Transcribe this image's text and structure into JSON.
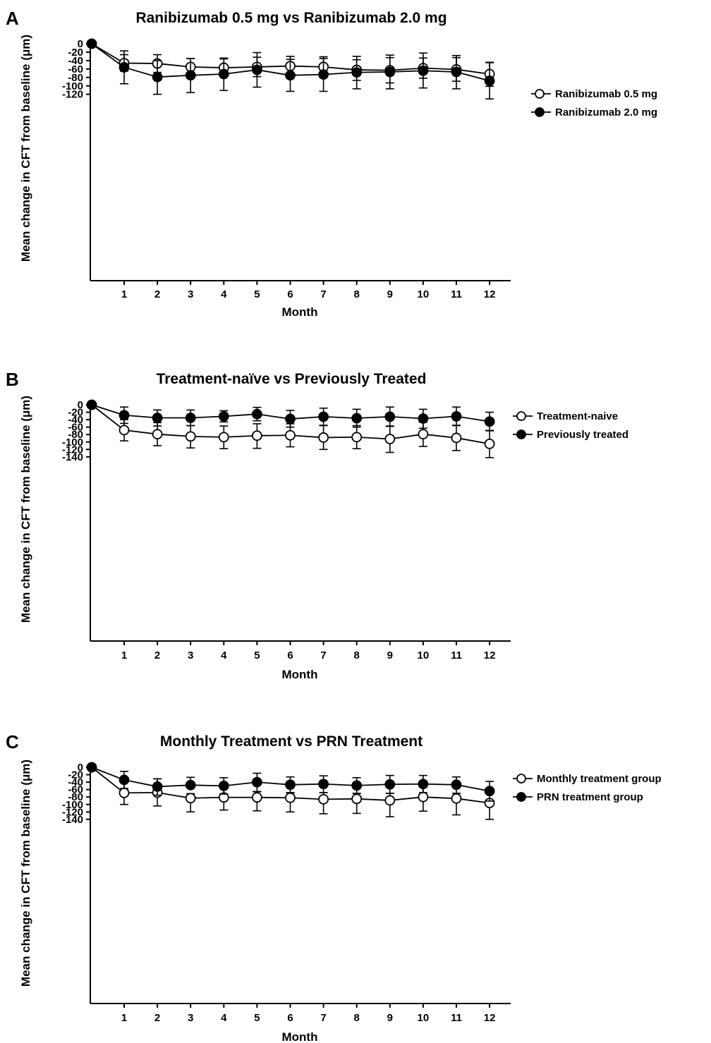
{
  "chart_data": [
    {
      "panel": "A",
      "type": "line",
      "title": "Ranibizumab 0.5 mg vs Ranibizumab 2.0 mg",
      "xlabel": "Month",
      "ylabel": "Mean change in CFT from baseline (μm)",
      "x": [
        0,
        1,
        2,
        3,
        4,
        5,
        6,
        7,
        8,
        9,
        10,
        11,
        12
      ],
      "x_tick_labels": [
        "1",
        "2",
        "3",
        "4",
        "5",
        "6",
        "7",
        "8",
        "9",
        "10",
        "11",
        "12"
      ],
      "ylim": [
        -140,
        0
      ],
      "y_ticks": [
        0,
        -20,
        -40,
        -60,
        -80,
        -100,
        -120
      ],
      "error_bars": true,
      "legend_position": "right",
      "series": [
        {
          "name": "Ranibizumab 0.5 mg",
          "marker": "open-circle",
          "values": [
            0,
            -46,
            -47,
            -55,
            -57,
            -55,
            -53,
            -55,
            -62,
            -63,
            -58,
            -61,
            -72
          ],
          "err_low": [
            null,
            -95,
            -68,
            -74,
            -78,
            -78,
            -73,
            -80,
            -87,
            -93,
            -82,
            -89,
            -101
          ],
          "err_high": [
            null,
            -17,
            -26,
            -35,
            -36,
            -32,
            -37,
            -35,
            -38,
            -33,
            -34,
            -33,
            -44
          ]
        },
        {
          "name": "Ranibizumab 2.0 mg",
          "marker": "filled-circle",
          "values": [
            0,
            -56,
            -79,
            -75,
            -72,
            -62,
            -75,
            -73,
            -68,
            -67,
            -64,
            -67,
            -88
          ],
          "err_low": [
            null,
            -65,
            -120,
            -116,
            -111,
            -103,
            -113,
            -113,
            -107,
            -107,
            -105,
            -107,
            -131
          ],
          "err_high": [
            null,
            -26,
            -40,
            -35,
            -34,
            -21,
            -30,
            -31,
            -30,
            -27,
            -22,
            -28,
            -45
          ]
        }
      ]
    },
    {
      "panel": "B",
      "type": "line",
      "title": "Treatment-naïve vs Previously Treated",
      "xlabel": "Month",
      "ylabel": "Mean change in CFT from baseline (μm)",
      "x": [
        0,
        1,
        2,
        3,
        4,
        5,
        6,
        7,
        8,
        9,
        10,
        11,
        12
      ],
      "x_tick_labels": [
        "1",
        "2",
        "3",
        "4",
        "5",
        "6",
        "7",
        "8",
        "9",
        "10",
        "11",
        "12"
      ],
      "ylim": [
        -160,
        0
      ],
      "y_ticks": [
        0,
        -20,
        -40,
        -60,
        -80,
        -100,
        -120,
        -140
      ],
      "error_bars": true,
      "legend_position": "right",
      "series": [
        {
          "name": "Treatment-naive",
          "marker": "open-circle",
          "values": [
            0,
            -68,
            -79,
            -85,
            -87,
            -83,
            -82,
            -88,
            -87,
            -92,
            -79,
            -89,
            -105
          ],
          "err_low": [
            null,
            -97,
            -110,
            -116,
            -118,
            -117,
            -113,
            -120,
            -118,
            -128,
            -112,
            -123,
            -142
          ],
          "err_high": [
            null,
            -40,
            -48,
            -56,
            -57,
            -51,
            -51,
            -56,
            -56,
            -57,
            -47,
            -56,
            -70
          ]
        },
        {
          "name": "Previously treated",
          "marker": "filled-circle",
          "values": [
            0,
            -28,
            -35,
            -35,
            -31,
            -25,
            -38,
            -32,
            -36,
            -32,
            -37,
            -31,
            -45
          ],
          "err_low": [
            null,
            -50,
            -57,
            -56,
            -46,
            -43,
            -60,
            -55,
            -60,
            -58,
            -63,
            -55,
            -69
          ],
          "err_high": [
            null,
            -6,
            -14,
            -14,
            -16,
            -7,
            -15,
            -9,
            -12,
            -6,
            -12,
            -6,
            -20
          ]
        }
      ]
    },
    {
      "panel": "C",
      "type": "line",
      "title": "Monthly Treatment vs PRN Treatment",
      "xlabel": "Month",
      "ylabel": "Mean change in CFT from baseline (μm)",
      "x": [
        0,
        1,
        2,
        3,
        4,
        5,
        6,
        7,
        8,
        9,
        10,
        11,
        12
      ],
      "x_tick_labels": [
        "1",
        "2",
        "3",
        "4",
        "5",
        "6",
        "7",
        "8",
        "9",
        "10",
        "11",
        "12"
      ],
      "ylim": [
        -160,
        0
      ],
      "y_ticks": [
        0,
        -20,
        -40,
        -60,
        -80,
        -100,
        -120,
        -140
      ],
      "error_bars": true,
      "legend_position": "right",
      "series": [
        {
          "name": "Monthly treatment group",
          "marker": "open-circle",
          "values": [
            0,
            -69,
            -68,
            -83,
            -81,
            -81,
            -82,
            -86,
            -85,
            -89,
            -80,
            -84,
            -96
          ],
          "err_low": [
            null,
            -100,
            -104,
            -120,
            -115,
            -117,
            -120,
            -125,
            -124,
            -133,
            -118,
            -128,
            -140
          ],
          "err_high": [
            null,
            -38,
            -31,
            -71,
            -72,
            -65,
            -68,
            -68,
            -70,
            -70,
            -42,
            -70,
            -91
          ]
        },
        {
          "name": "PRN treatment group",
          "marker": "filled-circle",
          "values": [
            0,
            -34,
            -52,
            -48,
            -50,
            -40,
            -47,
            -45,
            -49,
            -46,
            -45,
            -47,
            -64
          ],
          "err_low": [
            null,
            -57,
            -75,
            -50,
            -72,
            -66,
            -69,
            -68,
            -71,
            -70,
            -68,
            -70,
            -91
          ],
          "err_high": [
            null,
            -11,
            -31,
            -27,
            -28,
            -16,
            -26,
            -23,
            -28,
            -22,
            -22,
            -26,
            -38
          ]
        }
      ]
    }
  ]
}
